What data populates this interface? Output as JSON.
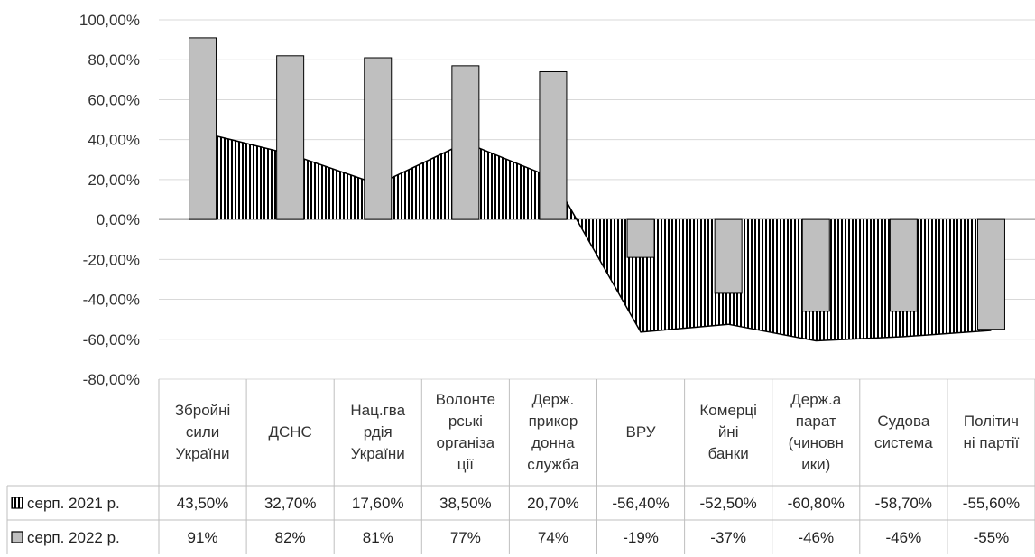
{
  "chart_data": {
    "type": "bar",
    "categories": [
      "Збройні сили України",
      "ДСНС",
      "Нац.гвардія України",
      "Волонтерські організації",
      "Держ. прикордонна служба",
      "ВРУ",
      "Комерційні банки",
      "Держ.апарат (чиновники)",
      "Судова система",
      "Політичні партії"
    ],
    "category_lines": [
      [
        "Збройні",
        "сили",
        "України"
      ],
      [
        "ДСНС"
      ],
      [
        "Нац.гва",
        "рдія",
        "України"
      ],
      [
        "Волонте",
        "рські",
        "організа",
        "ції"
      ],
      [
        "Держ.",
        "прикор",
        "донна",
        "служба"
      ],
      [
        "ВРУ"
      ],
      [
        "Комерці",
        "йні",
        "банки"
      ],
      [
        "Держ.а",
        "парат",
        "(чиновн",
        "ики)"
      ],
      [
        "Судова",
        "система"
      ],
      [
        "Політич",
        "ні партії"
      ]
    ],
    "series": [
      {
        "name": "серп. 2021 р.",
        "kind": "area",
        "pattern": "vertical-hatch",
        "values": [
          43.5,
          32.7,
          17.6,
          38.5,
          20.7,
          -56.4,
          -52.5,
          -60.8,
          -58.7,
          -55.6
        ],
        "labels": [
          "43,50%",
          "32,70%",
          "17,60%",
          "38,50%",
          "20,70%",
          "-56,40%",
          "-52,50%",
          "-60,80%",
          "-58,70%",
          "-55,60%"
        ]
      },
      {
        "name": "серп. 2022 р.",
        "kind": "bar",
        "color": "#bfbfbf",
        "values": [
          91,
          82,
          81,
          77,
          74,
          -19,
          -37,
          -46,
          -46,
          -55
        ],
        "labels": [
          "91%",
          "82%",
          "81%",
          "77%",
          "74%",
          "-19%",
          "-37%",
          "-46%",
          "-46%",
          "-55%"
        ]
      }
    ],
    "y_ticks": [
      100,
      80,
      60,
      40,
      20,
      0,
      -20,
      -40,
      -60,
      -80
    ],
    "y_tick_labels": [
      "100,00%",
      "80,00%",
      "60,00%",
      "40,00%",
      "20,00%",
      "0,00%",
      "-20,00%",
      "-40,00%",
      "-60,00%",
      "-80,00%"
    ],
    "ylim": [
      -80,
      100
    ],
    "grid": true,
    "legend": "data-table"
  }
}
